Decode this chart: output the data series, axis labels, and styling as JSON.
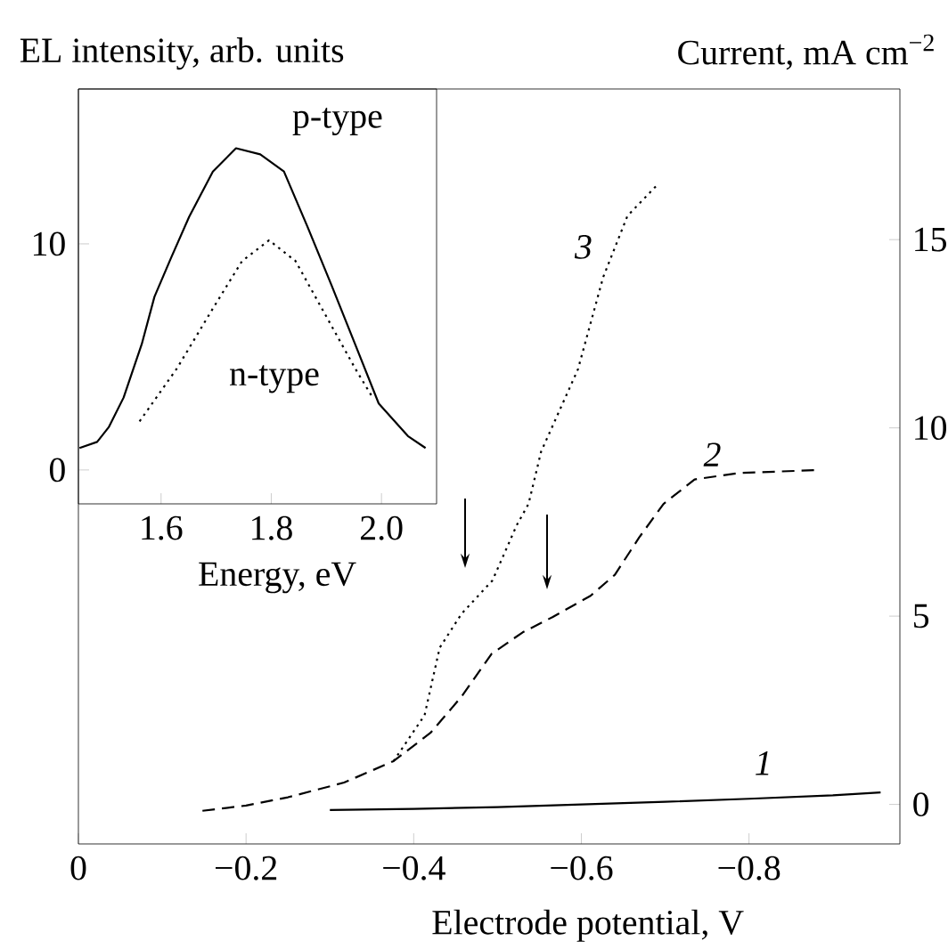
{
  "chart_data": [
    {
      "type": "line",
      "xlabel": "Electrode potential, V",
      "ylabel": "Current, mA cm$^{−2}$",
      "xlim": [
        0,
        -0.98
      ],
      "ylim": [
        -1.05,
        19
      ],
      "xticks": [
        0,
        {
          "value": -0.2,
          "label": "−0.2"
        },
        {
          "value": -0.4,
          "label": "−0.4"
        },
        {
          "value": -0.6,
          "label": "−0.6"
        },
        {
          "value": -0.8,
          "label": "−0.8"
        }
      ],
      "yticks": [
        0,
        5,
        10,
        15
      ],
      "grid": false,
      "marker": "none",
      "series": [
        {
          "name": "1",
          "color": "#000000",
          "line_style": "solid",
          "x": [
            -0.3,
            -0.4,
            -0.5,
            -0.6,
            -0.7,
            -0.8,
            -0.9,
            -0.957
          ],
          "values": [
            -0.15,
            -0.12,
            -0.07,
            0,
            0.07,
            0.15,
            0.24,
            0.32
          ]
        },
        {
          "name": "2",
          "color": "#000000",
          "line_style": "dashed",
          "x": [
            -0.148,
            -0.2,
            -0.25,
            -0.317,
            -0.376,
            -0.42,
            -0.457,
            -0.493,
            -0.53,
            -0.566,
            -0.611,
            -0.64,
            -0.669,
            -0.698,
            -0.735,
            -0.787,
            -0.882
          ],
          "values": [
            -0.17,
            -0.03,
            0.19,
            0.58,
            1.15,
            1.9,
            2.86,
            4.0,
            4.57,
            4.98,
            5.54,
            6.1,
            7.09,
            7.98,
            8.63,
            8.8,
            8.88
          ]
        },
        {
          "name": "3",
          "color": "#000000",
          "line_style": "dotted",
          "x": [
            -0.376,
            -0.413,
            -0.431,
            -0.457,
            -0.494,
            -0.523,
            -0.537,
            -0.552,
            -0.596,
            -0.626,
            -0.655,
            -0.69
          ],
          "values": [
            1.15,
            2.37,
            4.16,
            5.06,
            5.95,
            7.42,
            7.98,
            9.37,
            11.56,
            14.0,
            15.63,
            16.44
          ]
        }
      ]
    },
    {
      "type": "line",
      "xlabel": "Energy, eV",
      "ylabel": "EL intensity, arb. units",
      "xlim": [
        1.45,
        2.1
      ],
      "ylim": [
        -1.5,
        16.85
      ],
      "xticks": [
        1.6,
        1.8,
        {
          "value": 2.0,
          "label": "2.0"
        }
      ],
      "yticks": [
        0,
        10
      ],
      "grid": false,
      "marker": "none",
      "series": [
        {
          "name": "p-type",
          "color": "#000000",
          "line_style": "solid",
          "x": [
            1.452,
            1.484,
            1.505,
            1.532,
            1.565,
            1.588,
            1.618,
            1.651,
            1.694,
            1.736,
            1.78,
            1.823,
            1.865,
            1.909,
            1.952,
            1.995,
            2.048,
            2.08
          ],
          "values": [
            0.97,
            1.24,
            1.89,
            3.2,
            5.57,
            7.66,
            9.37,
            11.2,
            13.2,
            14.23,
            13.96,
            13.2,
            10.8,
            8.19,
            5.57,
            2.94,
            1.5,
            0.97
          ]
        },
        {
          "name": "n-type",
          "color": "#000000",
          "line_style": "dotted",
          "x": [
            1.561,
            1.629,
            1.694,
            1.747,
            1.796,
            1.844,
            1.898,
            1.952,
            1.984
          ],
          "values": [
            2.15,
            4.5,
            7.14,
            9.24,
            10.16,
            9.24,
            6.87,
            4.5,
            3.2
          ]
        }
      ]
    }
  ]
}
